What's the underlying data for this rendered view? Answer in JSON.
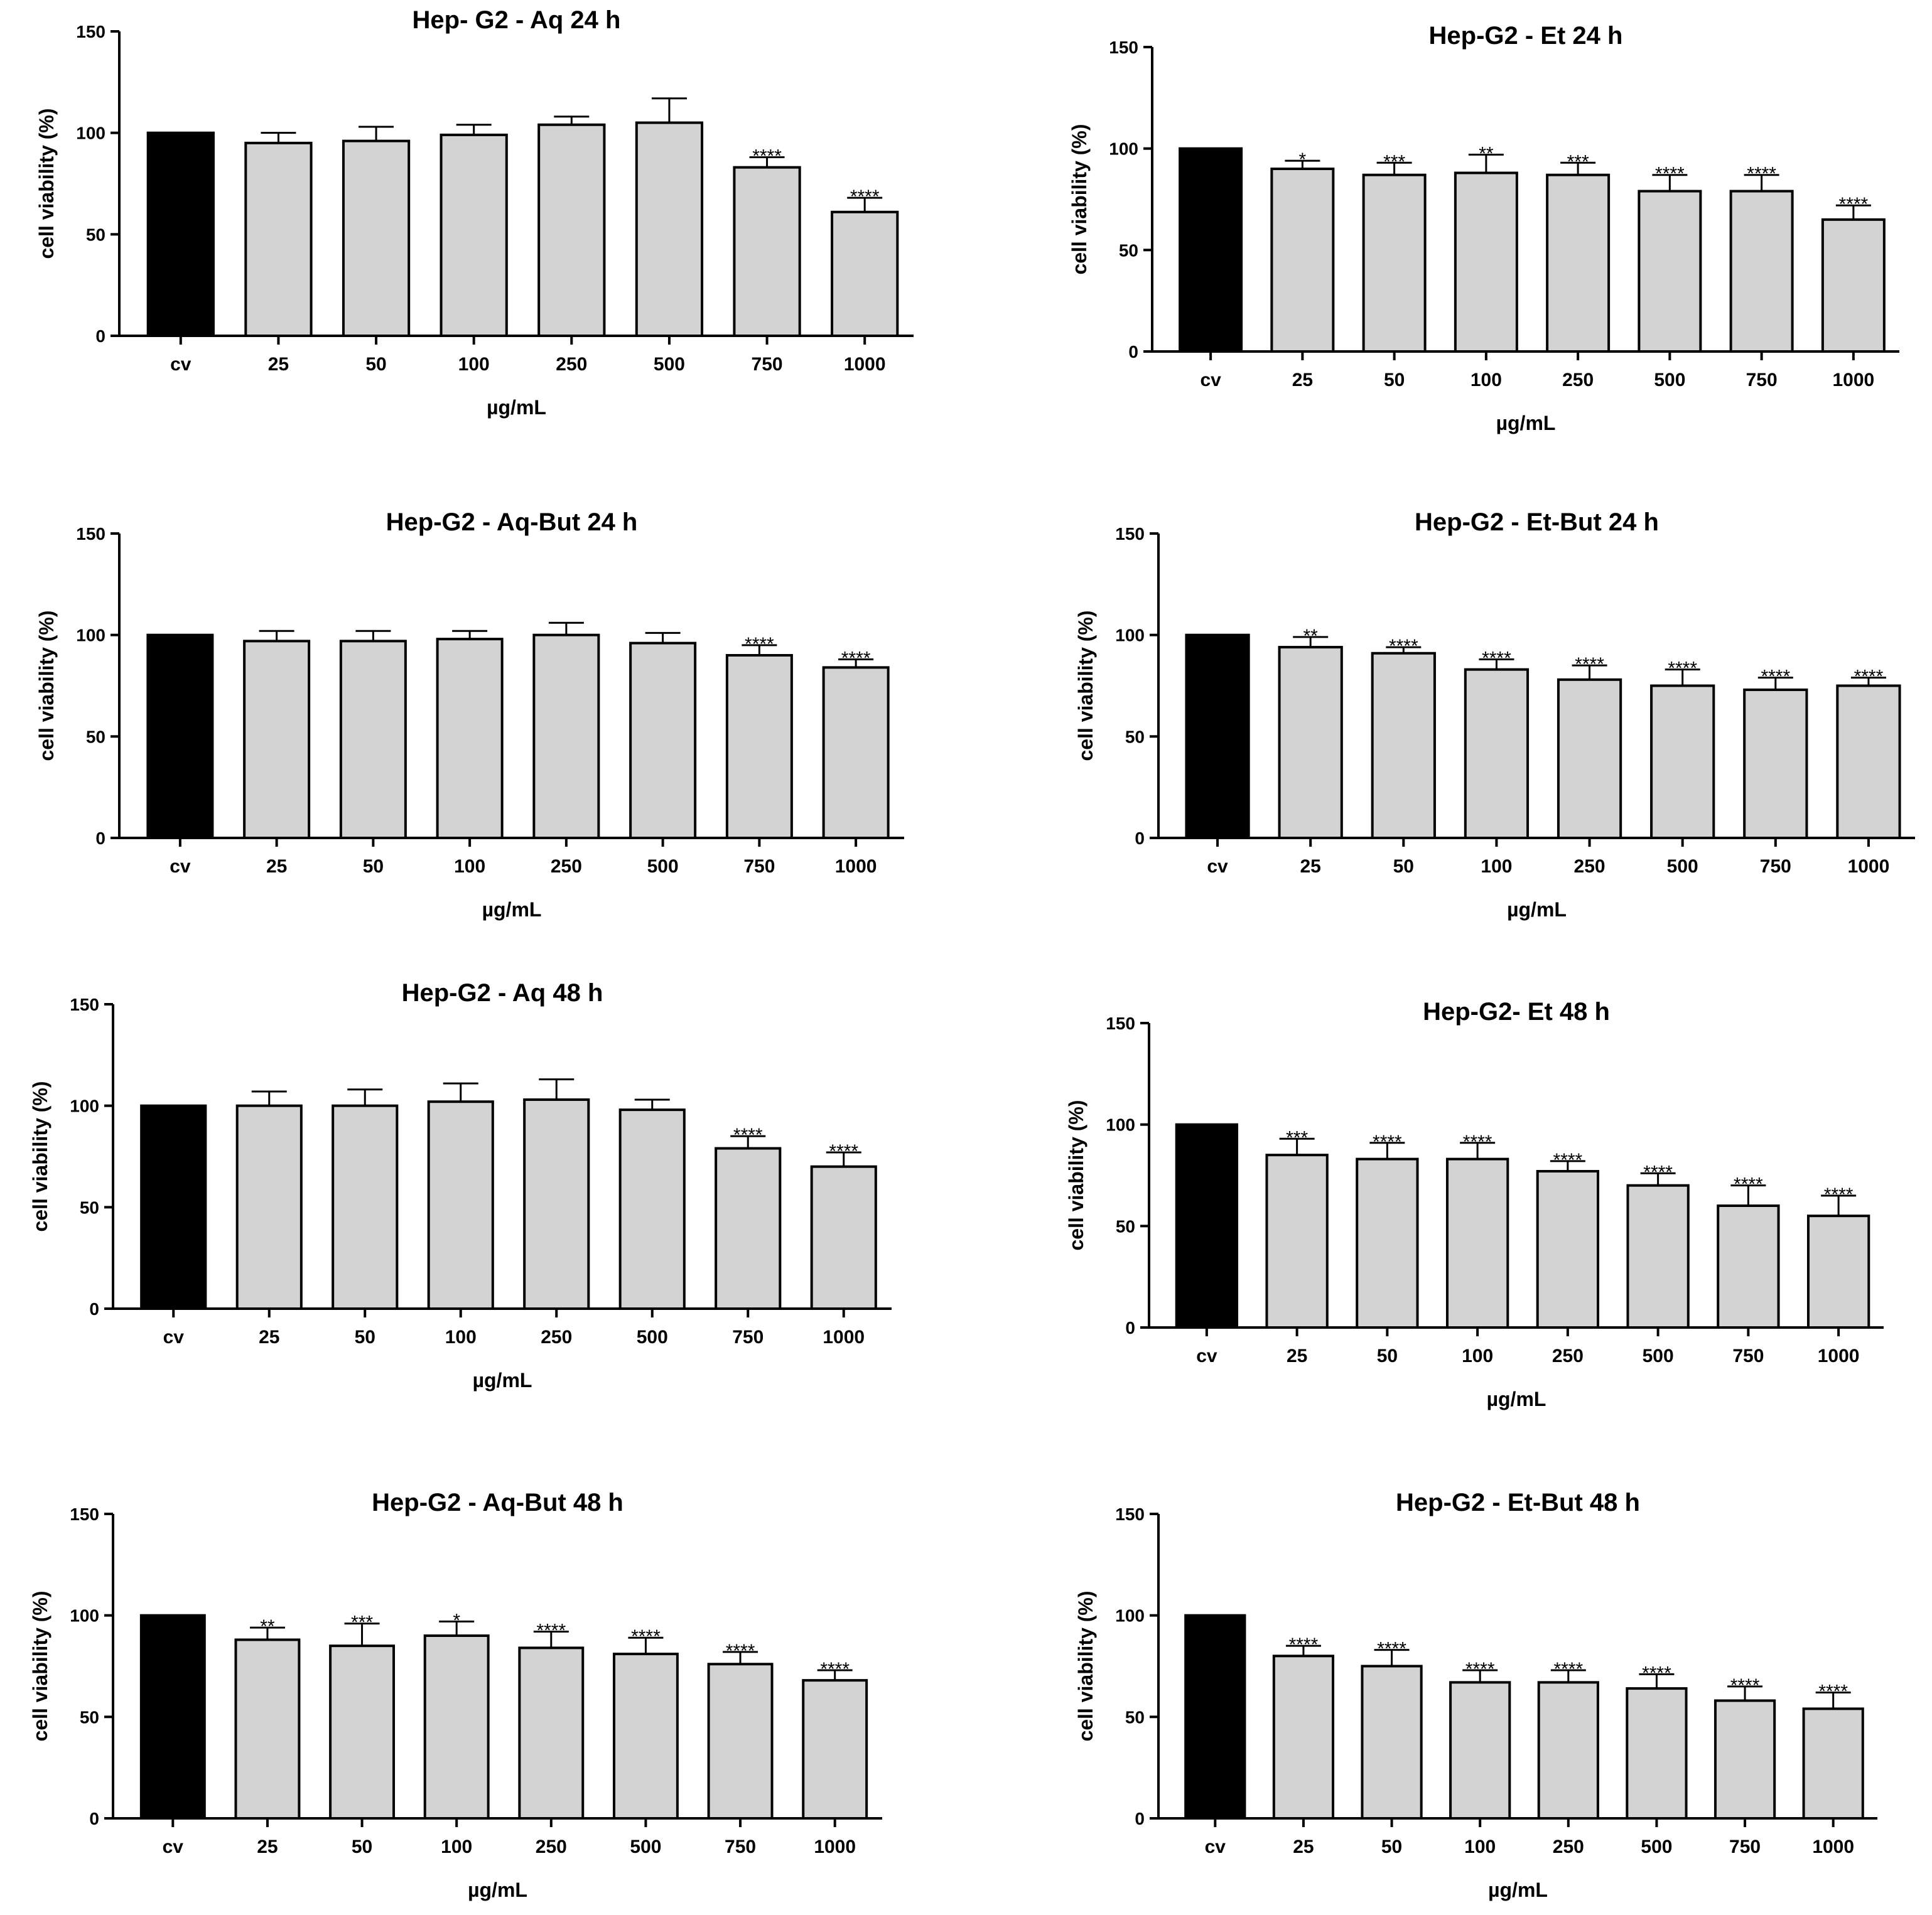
{
  "chart_data": [
    {
      "type": "bar",
      "title": "Hep- G2 - Aq 24 h",
      "xlabel": "µg/mL",
      "ylabel": "cell viability (%)",
      "ylim": [
        0,
        150
      ],
      "yticks": [
        "0",
        "50",
        "100",
        "150"
      ],
      "categories": [
        "cv",
        "25",
        "50",
        "100",
        "250",
        "500",
        "750",
        "1000"
      ],
      "values": [
        100,
        95,
        96,
        99,
        104,
        105,
        83,
        61
      ],
      "errors": [
        0,
        5,
        7,
        5,
        4,
        12,
        5,
        7
      ],
      "significance": [
        "",
        "",
        "",
        "",
        "",
        "",
        "****",
        "****"
      ],
      "colors": {
        "control": "#000000",
        "treatment": "#d3d3d3"
      }
    },
    {
      "type": "bar",
      "title": "Hep-G2 - Et 24 h",
      "xlabel": "µg/mL",
      "ylabel": "cell viability (%)",
      "ylim": [
        0,
        150
      ],
      "yticks": [
        "0",
        "50",
        "100",
        "150"
      ],
      "categories": [
        "cv",
        "25",
        "50",
        "100",
        "250",
        "500",
        "750",
        "1000"
      ],
      "values": [
        100,
        90,
        87,
        88,
        87,
        79,
        79,
        65
      ],
      "errors": [
        0,
        4,
        6,
        9,
        6,
        8,
        8,
        7
      ],
      "significance": [
        "",
        "*",
        "***",
        "**",
        "***",
        "****",
        "****",
        "****"
      ],
      "colors": {
        "control": "#000000",
        "treatment": "#d3d3d3"
      }
    },
    {
      "type": "bar",
      "title": "Hep-G2 - Aq-But 24 h",
      "xlabel": "µg/mL",
      "ylabel": "cell viability (%)",
      "ylim": [
        0,
        150
      ],
      "yticks": [
        "0",
        "50",
        "100",
        "150"
      ],
      "categories": [
        "cv",
        "25",
        "50",
        "100",
        "250",
        "500",
        "750",
        "1000"
      ],
      "values": [
        100,
        97,
        97,
        98,
        100,
        96,
        90,
        84
      ],
      "errors": [
        0,
        5,
        5,
        4,
        6,
        5,
        5,
        4
      ],
      "significance": [
        "",
        "",
        "",
        "",
        "",
        "",
        "****",
        "****"
      ],
      "colors": {
        "control": "#000000",
        "treatment": "#d3d3d3"
      }
    },
    {
      "type": "bar",
      "title": "Hep-G2 - Et-But 24 h",
      "xlabel": "µg/mL",
      "ylabel": "cell viability (%)",
      "ylim": [
        0,
        150
      ],
      "yticks": [
        "0",
        "50",
        "100",
        "150"
      ],
      "categories": [
        "cv",
        "25",
        "50",
        "100",
        "250",
        "500",
        "750",
        "1000"
      ],
      "values": [
        100,
        94,
        91,
        83,
        78,
        75,
        73,
        75
      ],
      "errors": [
        0,
        5,
        3,
        5,
        7,
        8,
        6,
        4
      ],
      "significance": [
        "",
        "**",
        "****",
        "****",
        "****",
        "****",
        "****",
        "****"
      ],
      "colors": {
        "control": "#000000",
        "treatment": "#d3d3d3"
      }
    },
    {
      "type": "bar",
      "title": "Hep-G2 - Aq 48 h",
      "xlabel": "µg/mL",
      "ylabel": "cell viability (%)",
      "ylim": [
        0,
        150
      ],
      "yticks": [
        "0",
        "50",
        "100",
        "150"
      ],
      "categories": [
        "cv",
        "25",
        "50",
        "100",
        "250",
        "500",
        "750",
        "1000"
      ],
      "values": [
        100,
        100,
        100,
        102,
        103,
        98,
        79,
        70
      ],
      "errors": [
        0,
        7,
        8,
        9,
        10,
        5,
        6,
        7
      ],
      "significance": [
        "",
        "",
        "",
        "",
        "",
        "",
        "****",
        "****"
      ],
      "colors": {
        "control": "#000000",
        "treatment": "#d3d3d3"
      }
    },
    {
      "type": "bar",
      "title": "Hep-G2- Et 48 h",
      "xlabel": "µg/mL",
      "ylabel": "cell viability (%)",
      "ylim": [
        0,
        150
      ],
      "yticks": [
        "0",
        "50",
        "100",
        "150"
      ],
      "categories": [
        "cv",
        "25",
        "50",
        "100",
        "250",
        "500",
        "750",
        "1000"
      ],
      "values": [
        100,
        85,
        83,
        83,
        77,
        70,
        60,
        55
      ],
      "errors": [
        0,
        8,
        8,
        8,
        5,
        6,
        10,
        10
      ],
      "significance": [
        "",
        "***",
        "****",
        "****",
        "****",
        "****",
        "****",
        "****"
      ],
      "colors": {
        "control": "#000000",
        "treatment": "#d3d3d3"
      }
    },
    {
      "type": "bar",
      "title": "Hep-G2 - Aq-But 48 h",
      "xlabel": "µg/mL",
      "ylabel": "cell viability (%)",
      "ylim": [
        0,
        150
      ],
      "yticks": [
        "0",
        "50",
        "100",
        "150"
      ],
      "categories": [
        "cv",
        "25",
        "50",
        "100",
        "250",
        "500",
        "750",
        "1000"
      ],
      "values": [
        100,
        88,
        85,
        90,
        84,
        81,
        76,
        68
      ],
      "errors": [
        0,
        6,
        11,
        7,
        8,
        8,
        6,
        5
      ],
      "significance": [
        "",
        "**",
        "***",
        "*",
        "****",
        "****",
        "****",
        "****"
      ],
      "colors": {
        "control": "#000000",
        "treatment": "#d3d3d3"
      }
    },
    {
      "type": "bar",
      "title": "Hep-G2 - Et-But 48 h",
      "xlabel": "µg/mL",
      "ylabel": "cell viability (%)",
      "ylim": [
        0,
        150
      ],
      "yticks": [
        "0",
        "50",
        "100",
        "150"
      ],
      "categories": [
        "cv",
        "25",
        "50",
        "100",
        "250",
        "500",
        "750",
        "1000"
      ],
      "values": [
        100,
        80,
        75,
        67,
        67,
        64,
        58,
        54
      ],
      "errors": [
        0,
        5,
        8,
        6,
        6,
        7,
        7,
        8
      ],
      "significance": [
        "",
        "****",
        "****",
        "****",
        "****",
        "****",
        "****",
        "****"
      ],
      "colors": {
        "control": "#000000",
        "treatment": "#d3d3d3"
      }
    }
  ]
}
